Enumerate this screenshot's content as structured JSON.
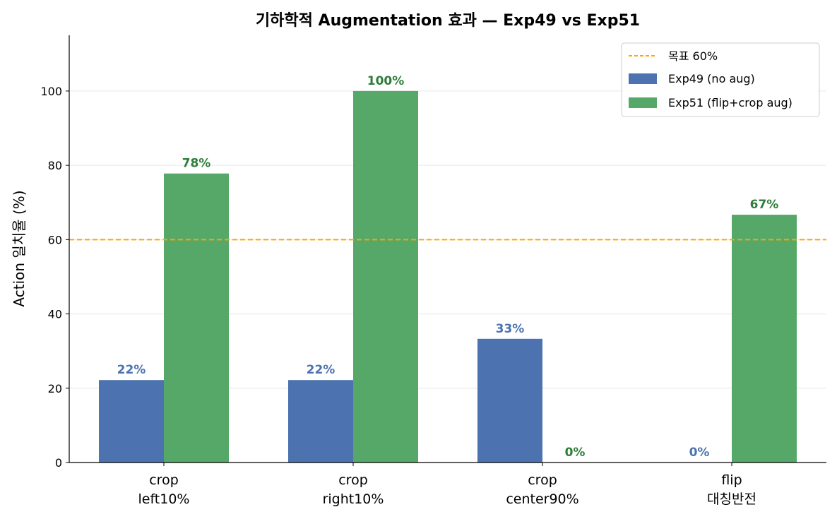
{
  "chart_data": {
    "type": "bar",
    "title": "기하학적 Augmentation 효과 — Exp49 vs Exp51",
    "xlabel": "",
    "ylabel": "Action 일치율 (%)",
    "ylim": [
      0,
      115
    ],
    "yticks": [
      0,
      20,
      40,
      60,
      80,
      100
    ],
    "categories": [
      [
        "crop",
        "left10%"
      ],
      [
        "crop",
        "right10%"
      ],
      [
        "crop",
        "center90%"
      ],
      [
        "flip",
        "대칭반전"
      ]
    ],
    "series": [
      {
        "name": "Exp49 (no aug)",
        "color": "#4c72b0",
        "label_color": "#4c72b0",
        "values": [
          22.2,
          22.2,
          33.3,
          0
        ],
        "labels": [
          "22%",
          "22%",
          "33%",
          "0%"
        ]
      },
      {
        "name": "Exp51 (flip+crop aug)",
        "color": "#55a868",
        "label_color": "#2e7d3a",
        "values": [
          77.8,
          100,
          0,
          66.7
        ],
        "labels": [
          "78%",
          "100%",
          "0%",
          "67%"
        ]
      }
    ],
    "reference_line": {
      "name": "목표 60%",
      "value": 60,
      "color": "#ffa500",
      "style": "dashed"
    },
    "grid": {
      "y": true,
      "color": "#e6e6e6"
    },
    "legend": "top-right"
  }
}
